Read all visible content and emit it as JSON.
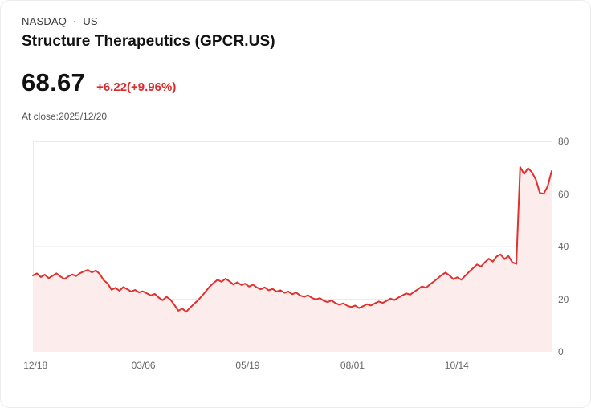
{
  "header": {
    "exchange": "NASDAQ",
    "separator": "·",
    "region": "US",
    "title": "Structure Therapeutics (GPCR.US)"
  },
  "quote": {
    "price": "68.67",
    "change": "+6.22(+9.96%)",
    "as_of": "At close:2025/12/20"
  },
  "colors": {
    "accent": "#d92c2c",
    "line": "#e0312e",
    "area_fill": "#fcecec",
    "grid": "#ebebeb",
    "axis_text": "#666666",
    "title_text": "#111111",
    "muted_text": "#565656"
  },
  "chart_data": {
    "type": "area",
    "symbol": "GPCR.US",
    "title": "Structure Therapeutics (GPCR.US) 1-year price",
    "ylim": [
      0,
      80
    ],
    "yticks": [
      0,
      20,
      40,
      60,
      80
    ],
    "xtick_labels": [
      "12/18",
      "03/06",
      "05/19",
      "08/01",
      "10/14"
    ],
    "xtick_positions": [
      0.005,
      0.213,
      0.414,
      0.616,
      0.817
    ],
    "grid": true,
    "values": [
      29.0,
      29.8,
      28.4,
      29.3,
      28.0,
      28.9,
      29.8,
      28.6,
      27.7,
      28.6,
      29.4,
      28.8,
      29.9,
      30.6,
      31.1,
      30.2,
      30.9,
      29.6,
      27.2,
      26.0,
      23.6,
      24.3,
      23.2,
      24.6,
      23.8,
      22.9,
      23.5,
      22.6,
      23.0,
      22.2,
      21.4,
      22.0,
      20.6,
      19.6,
      20.9,
      19.8,
      17.8,
      15.6,
      16.4,
      15.2,
      16.8,
      18.2,
      19.6,
      21.2,
      23.0,
      24.8,
      26.2,
      27.4,
      26.6,
      27.8,
      26.8,
      25.6,
      26.4,
      25.4,
      25.9,
      24.8,
      25.5,
      24.4,
      23.8,
      24.5,
      23.4,
      23.9,
      22.9,
      23.4,
      22.4,
      22.9,
      21.9,
      22.5,
      21.4,
      20.9,
      21.5,
      20.5,
      19.9,
      20.4,
      19.4,
      18.9,
      19.5,
      18.5,
      17.9,
      18.4,
      17.5,
      17.0,
      17.6,
      16.6,
      17.3,
      18.1,
      17.6,
      18.4,
      19.1,
      18.6,
      19.4,
      20.2,
      19.7,
      20.6,
      21.4,
      22.2,
      21.7,
      22.8,
      23.8,
      24.9,
      24.3,
      25.6,
      26.7,
      27.9,
      29.2,
      30.1,
      29.0,
      27.6,
      28.3,
      27.4,
      28.9,
      30.4,
      31.8,
      33.2,
      32.4,
      34.0,
      35.4,
      34.3,
      36.2,
      37.0,
      35.2,
      36.4,
      34.0,
      33.4,
      70.2,
      67.6,
      69.8,
      68.2,
      65.4,
      60.4,
      60.1,
      63.0,
      68.7
    ]
  }
}
